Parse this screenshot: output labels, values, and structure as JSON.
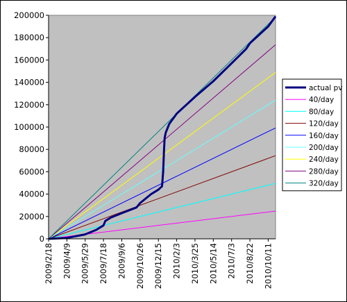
{
  "chart_data": {
    "type": "line",
    "title": "",
    "xlabel": "",
    "ylabel": "",
    "x_ticks": [
      "2009/2/18",
      "2009/4/9",
      "2009/5/29",
      "2009/7/18",
      "2009/9/6",
      "2009/10/26",
      "2009/12/15",
      "2010/2/3",
      "2010/3/25",
      "2010/5/14",
      "2010/7/3",
      "2010/8/22",
      "2010/10/11"
    ],
    "x_start": "2009/2/18",
    "x_end": "2010/10/31",
    "tick_step_days": 50,
    "ylim": [
      0,
      200000
    ],
    "y_ticks": [
      0,
      20000,
      40000,
      60000,
      80000,
      100000,
      120000,
      140000,
      160000,
      180000,
      200000
    ],
    "grid": false,
    "plot_background": "#c0c0c0",
    "legend_position": "right",
    "series": [
      {
        "name": "actual pv",
        "color": "#000080",
        "width": 3,
        "points": [
          [
            "2009/2/18",
            0
          ],
          [
            "2009/4/9",
            800
          ],
          [
            "2009/5/29",
            4000
          ],
          [
            "2009/6/28",
            8000
          ],
          [
            "2009/7/18",
            12000
          ],
          [
            "2009/7/23",
            16000
          ],
          [
            "2009/8/7",
            19000
          ],
          [
            "2009/9/6",
            23000
          ],
          [
            "2009/10/16",
            28000
          ],
          [
            "2009/10/26",
            32000
          ],
          [
            "2009/11/25",
            40000
          ],
          [
            "2009/12/15",
            44000
          ],
          [
            "2009/12/25",
            47000
          ],
          [
            "2009/12/28",
            60000
          ],
          [
            "2009/12/30",
            76000
          ],
          [
            "2010/1/1",
            90000
          ],
          [
            "2010/1/4",
            95000
          ],
          [
            "2010/1/14",
            103000
          ],
          [
            "2010/2/3",
            112000
          ],
          [
            "2010/3/25",
            127000
          ],
          [
            "2010/5/14",
            141000
          ],
          [
            "2010/7/3",
            157000
          ],
          [
            "2010/8/12",
            170000
          ],
          [
            "2010/8/22",
            175000
          ],
          [
            "2010/10/11",
            190000
          ],
          [
            "2010/10/31",
            199000
          ]
        ]
      },
      {
        "name": "40/day",
        "color": "#ff00ff",
        "width": 1,
        "rate": 40
      },
      {
        "name": "80/day",
        "color": "#00ffff",
        "width": 1,
        "rate": 80
      },
      {
        "name": "120/day",
        "color": "#800000",
        "width": 1,
        "rate": 120
      },
      {
        "name": "160/day",
        "color": "#0000ff",
        "width": 1,
        "rate": 160
      },
      {
        "name": "200/day",
        "color": "#66ffff",
        "width": 1,
        "rate": 200
      },
      {
        "name": "240/day",
        "color": "#ffff00",
        "width": 1,
        "rate": 240
      },
      {
        "name": "280/day",
        "color": "#800080",
        "width": 1,
        "rate": 280
      },
      {
        "name": "320/day",
        "color": "#008080",
        "width": 1,
        "rate": 320
      }
    ]
  }
}
